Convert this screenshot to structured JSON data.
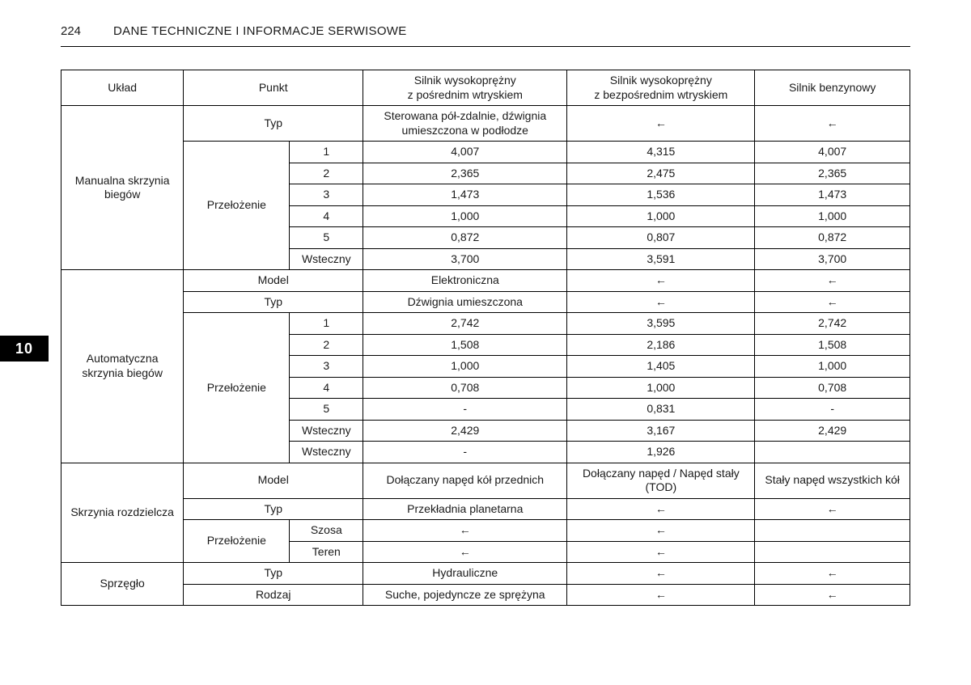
{
  "page_number": "224",
  "section_title": "DANE TECHNICZNE I INFORMACJE SERWISOWE",
  "chapter_tab": "10",
  "headers": {
    "uklad": "Układ",
    "punkt": "Punkt",
    "eng1": "Silnik wysokoprężny\nz pośrednim wtryskiem",
    "eng2": "Silnik wysokoprężny\nz bezpośrednim wtryskiem",
    "eng3": "Silnik benzynowy"
  },
  "labels": {
    "manual": "Manualna skrzynia biegów",
    "auto": "Automatyczna skrzynia biegów",
    "transfer": "Skrzynia rozdzielcza",
    "clutch": "Sprzęgło",
    "typ": "Typ",
    "model": "Model",
    "ratio": "Przełożenie",
    "reverse": "Wsteczny",
    "road": "Szosa",
    "terrain": "Teren",
    "rodzaj": "Rodzaj"
  },
  "arrow": "←",
  "dash": "-",
  "manual": {
    "typ_eng1": "Sterowana pół-zdalnie, dźwignia umieszczona w podłodze",
    "gears": {
      "1": [
        "4,007",
        "4,315",
        "4,007"
      ],
      "2": [
        "2,365",
        "2,475",
        "2,365"
      ],
      "3": [
        "1,473",
        "1,536",
        "1,473"
      ],
      "4": [
        "1,000",
        "1,000",
        "1,000"
      ],
      "5": [
        "0,872",
        "0,807",
        "0,872"
      ],
      "R": [
        "3,700",
        "3,591",
        "3,700"
      ]
    }
  },
  "auto": {
    "model_eng1": "Elektroniczna",
    "typ_eng1": "Dźwignia umieszczona",
    "gears": {
      "1": [
        "2,742",
        "3,595",
        "2,742"
      ],
      "2": [
        "1,508",
        "2,186",
        "1,508"
      ],
      "3": [
        "1,000",
        "1,405",
        "1,000"
      ],
      "4": [
        "0,708",
        "1,000",
        "0,708"
      ],
      "5": [
        "-",
        "0,831",
        "-"
      ],
      "R1": [
        "2,429",
        "3,167",
        "2,429"
      ],
      "R2": [
        "-",
        "1,926",
        ""
      ]
    }
  },
  "transfer": {
    "model": [
      "Dołączany napęd kół przednich",
      "Dołączany napęd / Napęd stały (TOD)",
      "Stały napęd wszystkich kół"
    ],
    "typ_eng1": "Przekładnia planetarna"
  },
  "clutch": {
    "typ_eng1": "Hydrauliczne",
    "rodzaj_eng1": "Suche, pojedyncze ze sprężyna"
  }
}
